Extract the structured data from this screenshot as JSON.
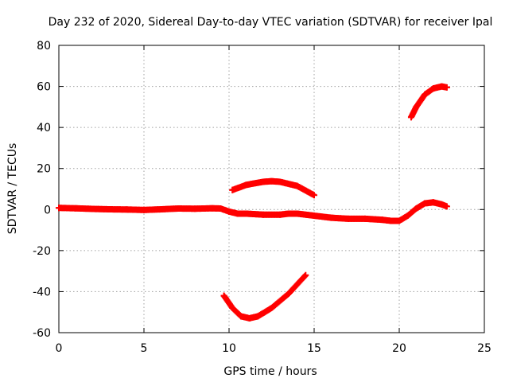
{
  "chart_data": {
    "type": "scatter",
    "title": "Day 232 of 2020, Sidereal Day-to-day VTEC variation (SDTVAR) for receiver Ipal",
    "xlabel": "GPS time / hours",
    "ylabel": "SDTVAR / TECUs",
    "xlim": [
      0,
      25
    ],
    "ylim": [
      -60,
      80
    ],
    "xticks": [
      0,
      5,
      10,
      15,
      20,
      25
    ],
    "yticks": [
      -60,
      -40,
      -20,
      0,
      20,
      40,
      60,
      80
    ],
    "grid": true,
    "marker": "+",
    "color": "#ff0000",
    "series": [
      {
        "name": "main-track",
        "x": [
          0,
          1,
          2,
          3,
          4,
          5,
          6,
          7,
          8,
          9,
          9.5,
          10,
          10.5,
          11,
          12,
          13,
          13.5,
          14,
          15,
          16,
          17,
          18,
          19,
          19.5,
          20,
          20.5,
          21,
          21.5,
          22,
          22.5,
          22.8
        ],
        "y": [
          0.8,
          0.6,
          0.3,
          0.1,
          0,
          -0.2,
          0.1,
          0.5,
          0.4,
          0.6,
          0.5,
          -1,
          -2,
          -2,
          -2.5,
          -2.5,
          -2,
          -2,
          -3,
          -4,
          -4.5,
          -4.5,
          -5,
          -5.5,
          -5.5,
          -3,
          0.5,
          3,
          3.5,
          2.5,
          1.5
        ]
      },
      {
        "name": "upper-arc",
        "x": [
          10.2,
          11,
          12,
          12.5,
          13,
          14,
          15
        ],
        "y": [
          9.5,
          12,
          13.5,
          13.8,
          13.5,
          11.5,
          7
        ]
      },
      {
        "name": "lower-arc",
        "x": [
          9.7,
          10.2,
          10.7,
          11.2,
          11.7,
          12.5,
          13.5,
          14.5
        ],
        "y": [
          -42,
          -48,
          -52,
          -53,
          -52,
          -48,
          -41,
          -32
        ]
      },
      {
        "name": "late-arc",
        "x": [
          20.7,
          21,
          21.5,
          22,
          22.5,
          22.8
        ],
        "y": [
          45,
          50,
          56,
          59,
          60,
          59.5
        ]
      }
    ]
  }
}
